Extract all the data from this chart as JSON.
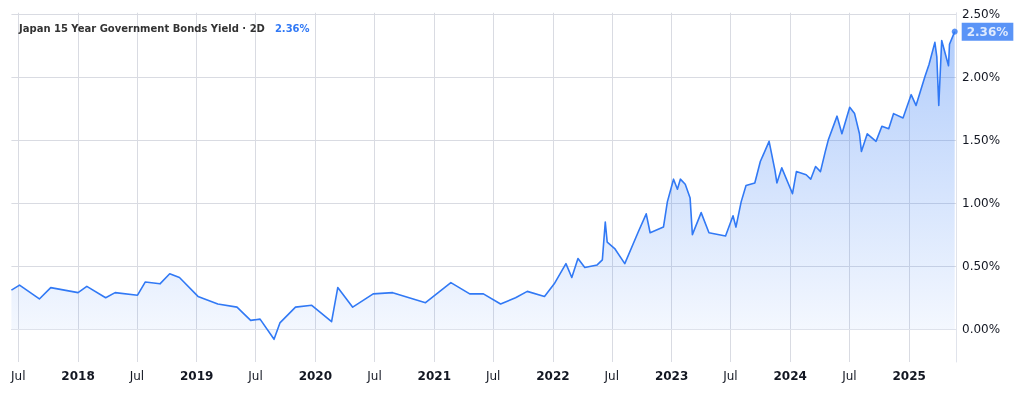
{
  "chart_data": {
    "type": "area",
    "title": "Japan 15 Year Government Bonds Yield · 2D",
    "annotations": [
      "2.36%",
      {
        "text": "2.36%",
        "x": "2025-05-21",
        "y": 2.36
      }
    ],
    "x": [
      "2017-06-10",
      "2017-07-05",
      "2017-09-04",
      "2017-10-09",
      "2018-01-01",
      "2018-01-28",
      "2018-03-27",
      "2018-04-25",
      "2018-07-03",
      "2018-07-27",
      "2018-09-10",
      "2018-10-10",
      "2018-11-09",
      "2019-01-05",
      "2019-03-07",
      "2019-05-05",
      "2019-06-16",
      "2019-07-15",
      "2019-08-27",
      "2019-09-14",
      "2019-11-01",
      "2019-12-21",
      "2020-02-20",
      "2020-03-10",
      "2020-04-25",
      "2020-06-27",
      "2020-08-26",
      "2020-12-05",
      "2021-02-21",
      "2021-04-20",
      "2021-06-01",
      "2021-07-24",
      "2021-09-08",
      "2021-10-14",
      "2021-12-06",
      "2022-01-05",
      "2022-02-10",
      "2022-02-28",
      "2022-03-19",
      "2022-04-09",
      "2022-05-17",
      "2022-06-02",
      "2022-06-11",
      "2022-06-17",
      "2022-07-10",
      "2022-08-10",
      "2022-09-21",
      "2022-10-15",
      "2022-10-27",
      "2022-12-07",
      "2022-12-19",
      "2023-01-07",
      "2023-01-19",
      "2023-01-28",
      "2023-02-12",
      "2023-02-27",
      "2023-03-06",
      "2023-04-02",
      "2023-04-26",
      "2023-06-16",
      "2023-07-09",
      "2023-07-18",
      "2023-08-03",
      "2023-08-18",
      "2023-09-14",
      "2023-10-01",
      "2023-10-28",
      "2023-11-15",
      "2023-11-21",
      "2023-12-06",
      "2023-12-27",
      "2024-01-08",
      "2024-01-20",
      "2024-02-19",
      "2024-03-04",
      "2024-03-19",
      "2024-04-03",
      "2024-04-18",
      "2024-04-27",
      "2024-05-24",
      "2024-06-08",
      "2024-07-02",
      "2024-07-17",
      "2024-08-01",
      "2024-08-07",
      "2024-08-25",
      "2024-09-21",
      "2024-10-09",
      "2024-10-30",
      "2024-11-14",
      "2024-12-13",
      "2025-01-07",
      "2025-01-22",
      "2025-02-18",
      "2025-03-03",
      "2025-03-21",
      "2025-03-27",
      "2025-04-02",
      "2025-04-11",
      "2025-05-02",
      "2025-05-05",
      "2025-05-21"
    ],
    "series": [
      {
        "color": "#3179f5",
        "values": [
          0.31,
          0.35,
          0.24,
          0.33,
          0.29,
          0.34,
          0.25,
          0.29,
          0.27,
          0.375,
          0.36,
          0.44,
          0.41,
          0.26,
          0.2,
          0.175,
          0.07,
          0.08,
          -0.08,
          0.05,
          0.175,
          0.19,
          0.06,
          0.33,
          0.175,
          0.28,
          0.29,
          0.21,
          0.37,
          0.28,
          0.28,
          0.2,
          0.25,
          0.3,
          0.26,
          0.36,
          0.52,
          0.41,
          0.56,
          0.49,
          0.51,
          0.55,
          0.85,
          0.69,
          0.64,
          0.52,
          0.775,
          0.915,
          0.765,
          0.81,
          1.01,
          1.19,
          1.11,
          1.19,
          1.15,
          1.04,
          0.75,
          0.925,
          0.765,
          0.74,
          0.9,
          0.81,
          1.01,
          1.14,
          1.16,
          1.33,
          1.49,
          1.26,
          1.16,
          1.28,
          1.15,
          1.075,
          1.25,
          1.225,
          1.19,
          1.29,
          1.25,
          1.41,
          1.5,
          1.69,
          1.55,
          1.76,
          1.71,
          1.55,
          1.41,
          1.55,
          1.49,
          1.61,
          1.59,
          1.71,
          1.675,
          1.86,
          1.775,
          2.0,
          2.1,
          2.275,
          2.16,
          1.775,
          2.29,
          2.09,
          2.26,
          2.36
        ]
      }
    ],
    "xlim": [
      "2017-06-10",
      "2025-05-25"
    ],
    "xticks": [
      {
        "value": "2017-07-01",
        "label": "Jul"
      },
      {
        "value": "2018-01-01",
        "label": "2018"
      },
      {
        "value": "2018-07-01",
        "label": "Jul"
      },
      {
        "value": "2019-01-01",
        "label": "2019"
      },
      {
        "value": "2019-07-01",
        "label": "Jul"
      },
      {
        "value": "2020-01-01",
        "label": "2020"
      },
      {
        "value": "2020-07-01",
        "label": "Jul"
      },
      {
        "value": "2021-01-01",
        "label": "2021"
      },
      {
        "value": "2021-07-01",
        "label": "Jul"
      },
      {
        "value": "2022-01-01",
        "label": "2022"
      },
      {
        "value": "2022-07-01",
        "label": "Jul"
      },
      {
        "value": "2023-01-01",
        "label": "2023"
      },
      {
        "value": "2023-07-01",
        "label": "Jul"
      },
      {
        "value": "2024-01-01",
        "label": "2024"
      },
      {
        "value": "2024-07-01",
        "label": "Jul"
      },
      {
        "value": "2025-01-01",
        "label": "2025"
      }
    ],
    "ylim": [
      -0.26,
      2.51
    ],
    "yticks": [
      {
        "value": 0,
        "label": "0.00%"
      },
      {
        "value": 0.5,
        "label": "0.50%"
      },
      {
        "value": 1,
        "label": "1.00%"
      },
      {
        "value": 1.5,
        "label": "1.50%"
      },
      {
        "value": 2,
        "label": "2.00%"
      },
      {
        "value": 2.5,
        "label": "2.50%"
      }
    ],
    "grid": true
  }
}
